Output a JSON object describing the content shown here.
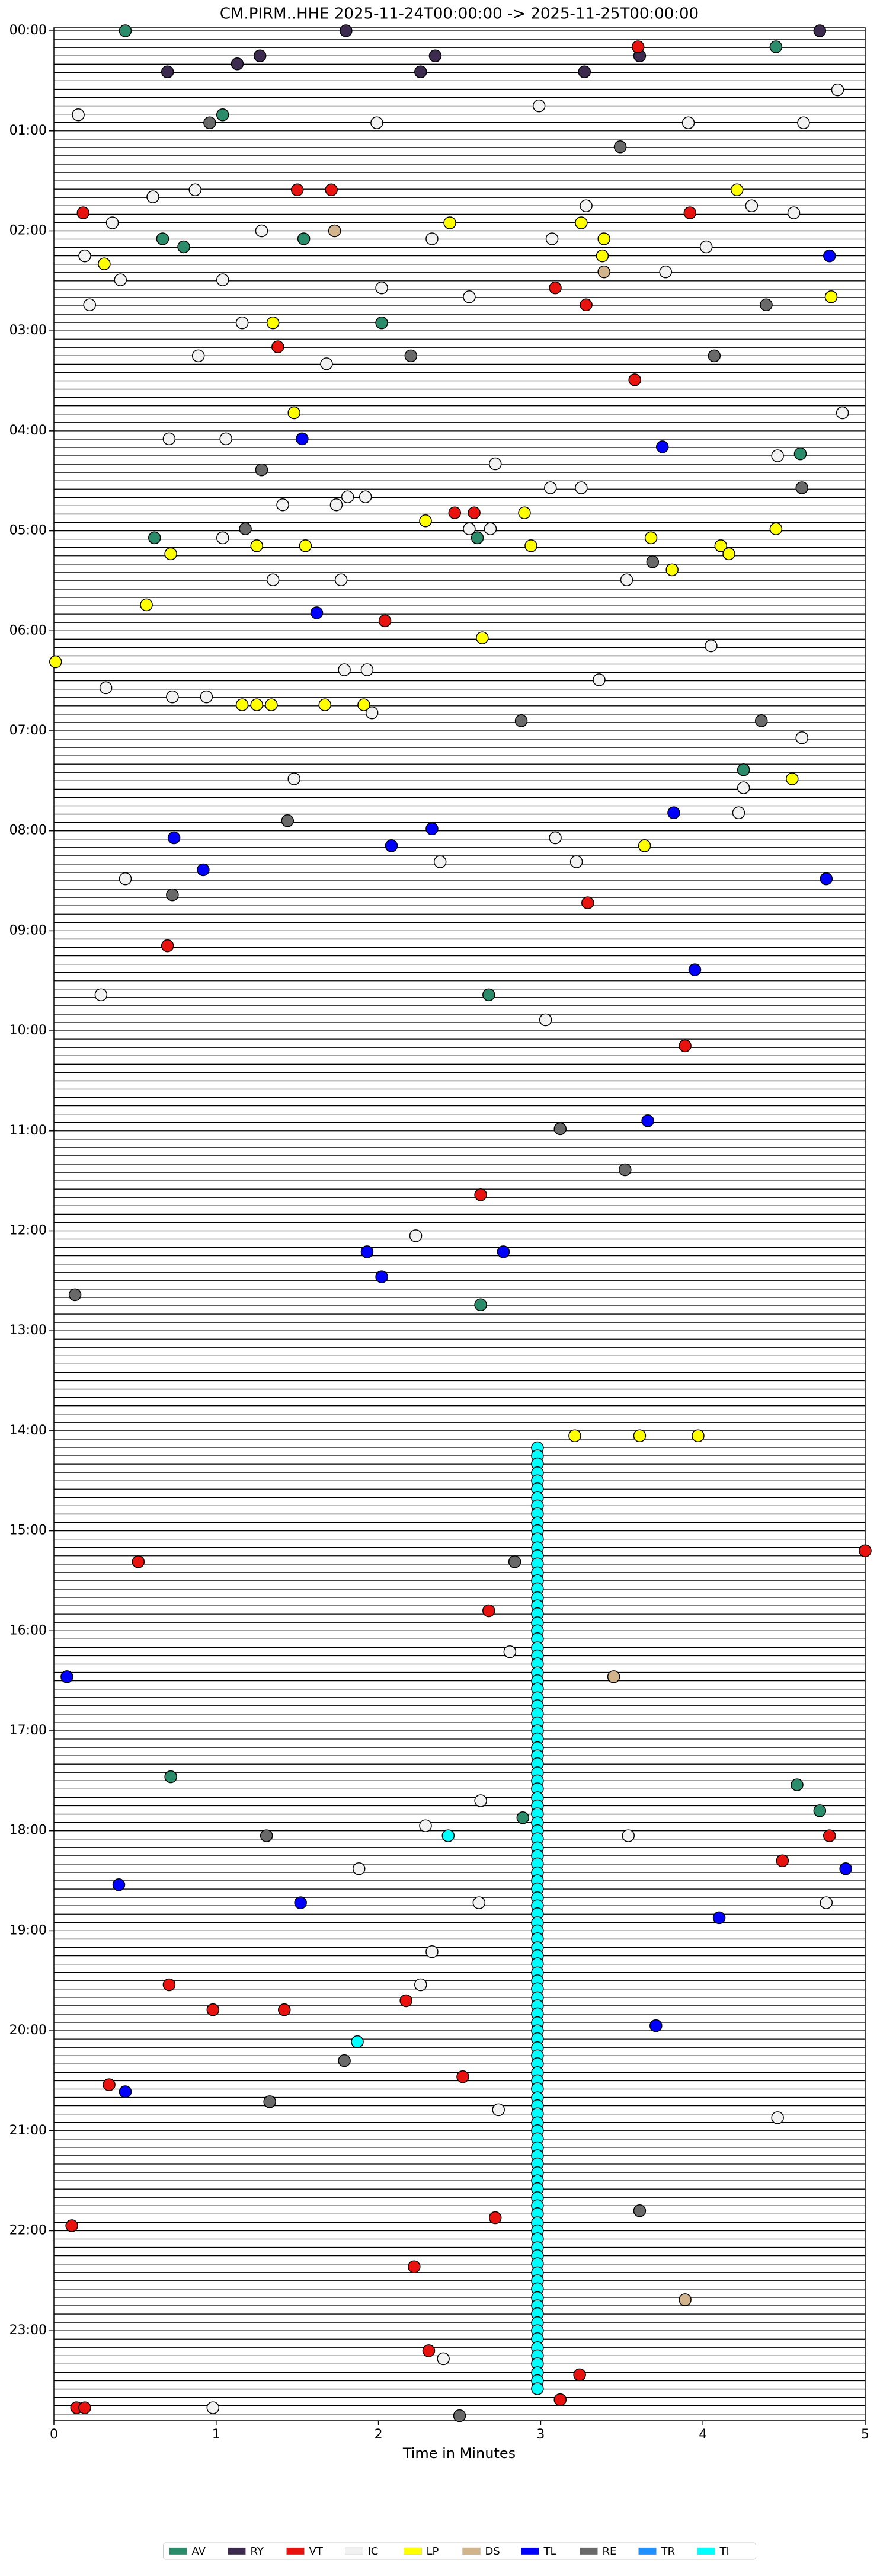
{
  "chart_data": {
    "type": "scatter",
    "title": "CM.PIRM..HHE  2025-11-24T00:00:00 -> 2025-11-25T00:00:00",
    "xlabel": "Time in Minutes",
    "xlim": [
      0,
      5
    ],
    "xticks": [
      0,
      1,
      2,
      3,
      4,
      5
    ],
    "ylim": [
      -0.03,
      23.9
    ],
    "invert_y": true,
    "yticks": [
      {
        "value": 0,
        "label": "00:00"
      },
      {
        "value": 1,
        "label": "01:00"
      },
      {
        "value": 2,
        "label": "02:00"
      },
      {
        "value": 3,
        "label": "03:00"
      },
      {
        "value": 4,
        "label": "04:00"
      },
      {
        "value": 5,
        "label": "05:00"
      },
      {
        "value": 6,
        "label": "06:00"
      },
      {
        "value": 7,
        "label": "07:00"
      },
      {
        "value": 8,
        "label": "08:00"
      },
      {
        "value": 9,
        "label": "09:00"
      },
      {
        "value": 10,
        "label": "10:00"
      },
      {
        "value": 11,
        "label": "11:00"
      },
      {
        "value": 12,
        "label": "12:00"
      },
      {
        "value": 13,
        "label": "13:00"
      },
      {
        "value": 14,
        "label": "14:00"
      },
      {
        "value": 15,
        "label": "15:00"
      },
      {
        "value": 16,
        "label": "16:00"
      },
      {
        "value": 17,
        "label": "17:00"
      },
      {
        "value": 18,
        "label": "18:00"
      },
      {
        "value": 19,
        "label": "19:00"
      },
      {
        "value": 20,
        "label": "20:00"
      },
      {
        "value": 21,
        "label": "21:00"
      },
      {
        "value": 22,
        "label": "22:00"
      },
      {
        "value": 23,
        "label": "23:00"
      }
    ],
    "legend": "lower center",
    "series": [
      {
        "name": "AV",
        "color": "#2a8c6a",
        "x": [
          0.44,
          4.45,
          1.04,
          1.54,
          0.67,
          0.8,
          2.02,
          4.6,
          2.61,
          0.62,
          4.25,
          2.68,
          2.63,
          0.72,
          4.58,
          4.72,
          2.89
        ],
        "values": [
          0.0,
          0.16,
          0.84,
          2.08,
          2.08,
          2.16,
          2.92,
          4.23,
          5.07,
          5.07,
          7.39,
          9.64,
          12.74,
          17.46,
          17.54,
          17.8,
          17.87
        ]
      },
      {
        "name": "RY",
        "color": "#3d2b4f",
        "x": [
          4.72,
          1.8,
          1.27,
          2.35,
          3.61,
          1.13,
          0.7,
          2.26,
          3.27
        ],
        "values": [
          0,
          0,
          0.25,
          0.25,
          0.25,
          0.33,
          0.41,
          0.41,
          0.41
        ]
      },
      {
        "name": "VT",
        "color": "#e8120f",
        "x": [
          3.6,
          1.5,
          1.71,
          0.18,
          3.92,
          3.09,
          3.28,
          1.38,
          3.58,
          2.47,
          2.59,
          2.04,
          3.29,
          0.7,
          3.89,
          2.63,
          0.52,
          2.68,
          4.78,
          4.49,
          0.71,
          0.98,
          1.42,
          2.17,
          0.34,
          2.52,
          0.11,
          2.72,
          2.22,
          2.31,
          3.24,
          3.12,
          0.14,
          0.19,
          5.0
        ],
        "values": [
          0.16,
          1.59,
          1.59,
          1.82,
          1.82,
          2.57,
          2.74,
          3.16,
          3.49,
          4.82,
          4.82,
          5.9,
          8.72,
          9.15,
          10.15,
          11.64,
          15.31,
          15.8,
          18.05,
          18.3,
          19.54,
          19.79,
          19.79,
          19.7,
          20.54,
          20.46,
          21.95,
          21.87,
          22.36,
          23.2,
          23.44,
          23.69,
          23.77,
          23.77,
          15.2
        ]
      },
      {
        "name": "IC",
        "color": "#f2f2f2",
        "x": [
          0.15,
          1.99,
          3.91,
          4.62,
          2.99,
          4.83,
          0.87,
          0.61,
          3.28,
          4.3,
          4.56,
          0.36,
          1.28,
          2.33,
          3.07,
          4.02,
          0.19,
          0.41,
          1.04,
          3.77,
          2.02,
          2.56,
          0.22,
          1.16,
          0.89,
          1.68,
          4.86,
          0.71,
          1.06,
          4.46,
          2.72,
          3.06,
          3.25,
          1.81,
          1.92,
          1.74,
          1.41,
          1.04,
          2.56,
          2.69,
          1.35,
          1.77,
          3.53,
          4.05,
          1.79,
          1.93,
          0.32,
          3.36,
          0.73,
          0.94,
          1.96,
          4.61,
          4.25,
          1.48,
          4.22,
          3.09,
          2.38,
          3.22,
          0.44,
          0.29,
          3.03,
          2.23,
          2.29,
          3.54,
          2.63,
          1.88,
          2.62,
          4.76,
          2.33,
          2.26,
          2.74,
          4.46,
          2.81,
          2.4,
          0.98
        ],
        "values": [
          0.84,
          0.92,
          0.92,
          0.92,
          0.75,
          0.59,
          1.59,
          1.66,
          1.75,
          1.75,
          1.82,
          1.92,
          2.0,
          2.08,
          2.08,
          2.16,
          2.25,
          2.49,
          2.49,
          2.41,
          2.57,
          2.66,
          2.74,
          2.92,
          3.25,
          3.33,
          3.82,
          4.08,
          4.08,
          4.25,
          4.33,
          4.57,
          4.57,
          4.66,
          4.66,
          4.74,
          4.74,
          5.07,
          4.98,
          4.98,
          5.49,
          5.49,
          5.49,
          6.15,
          6.39,
          6.39,
          6.57,
          6.49,
          6.66,
          6.66,
          6.82,
          7.07,
          7.57,
          7.48,
          7.82,
          8.07,
          8.31,
          8.31,
          8.48,
          9.64,
          9.89,
          12.05,
          17.95,
          18.05,
          17.7,
          18.38,
          18.72,
          18.72,
          19.21,
          19.54,
          20.79,
          20.87,
          16.21,
          23.28,
          23.77
        ]
      },
      {
        "name": "LP",
        "color": "#ffff00",
        "x": [
          4.21,
          2.44,
          3.25,
          3.39,
          0.31,
          3.38,
          4.79,
          1.35,
          1.48,
          2.29,
          2.9,
          3.68,
          4.45,
          1.25,
          1.55,
          2.94,
          4.11,
          4.16,
          0.72,
          3.81,
          0.57,
          2.64,
          0.01,
          1.16,
          1.25,
          1.34,
          1.67,
          1.91,
          4.55,
          3.64,
          3.21,
          3.61,
          3.97
        ],
        "values": [
          1.59,
          1.92,
          1.92,
          2.08,
          2.33,
          2.25,
          2.66,
          2.92,
          3.82,
          4.9,
          4.82,
          5.07,
          4.98,
          5.15,
          5.15,
          5.15,
          5.15,
          5.23,
          5.23,
          5.39,
          5.74,
          6.07,
          6.31,
          6.74,
          6.74,
          6.74,
          6.74,
          6.74,
          7.48,
          8.15,
          14.05,
          14.05,
          14.05
        ]
      },
      {
        "name": "DS",
        "color": "#d2b48c",
        "x": [
          1.73,
          3.39,
          3.45,
          3.89
        ],
        "values": [
          2.0,
          2.41,
          16.46,
          22.69
        ]
      },
      {
        "name": "TL",
        "color": "#0000ff",
        "x": [
          4.78,
          1.53,
          3.75,
          1.62,
          3.82,
          0.74,
          2.33,
          2.08,
          0.92,
          4.76,
          3.95,
          3.66,
          1.93,
          2.77,
          2.02,
          0.08,
          4.88,
          0.4,
          1.52,
          4.1,
          3.71,
          0.44
        ],
        "values": [
          2.25,
          4.08,
          4.16,
          5.82,
          7.82,
          8.07,
          7.98,
          8.15,
          8.39,
          8.48,
          9.39,
          10.9,
          12.21,
          12.21,
          12.46,
          16.46,
          18.38,
          18.54,
          18.72,
          18.87,
          19.95,
          20.61
        ]
      },
      {
        "name": "RE",
        "color": "#696969",
        "x": [
          4.07,
          2.2,
          1.28,
          4.61,
          1.18,
          3.69,
          2.88,
          4.36,
          1.44,
          0.73,
          3.12,
          3.52,
          0.13,
          4.39,
          0.96,
          3.49,
          2.84,
          1.31,
          1.79,
          1.33,
          3.61,
          2.5
        ],
        "values": [
          3.25,
          3.25,
          4.39,
          4.57,
          4.98,
          5.31,
          6.9,
          6.9,
          7.9,
          8.64,
          10.98,
          11.39,
          12.64,
          2.74,
          0.92,
          1.16,
          15.31,
          18.05,
          20.3,
          20.71,
          21.8,
          23.85
        ]
      },
      {
        "name": "TR",
        "color": "#1e90ff",
        "x": [],
        "values": []
      },
      {
        "name": "TI",
        "color": "#00ffff",
        "x": [
          2.98,
          2.98,
          2.98,
          2.98,
          2.98,
          2.98,
          2.98,
          2.98,
          2.98,
          2.98,
          2.98,
          2.98,
          2.98,
          2.98,
          2.98,
          2.98,
          2.98,
          2.98,
          2.98,
          2.98,
          2.98,
          2.98,
          2.98,
          2.98,
          2.98,
          2.98,
          2.98,
          2.98,
          2.98,
          2.98,
          2.98,
          2.98,
          2.98,
          2.98,
          2.98,
          2.98,
          2.98,
          2.98,
          2.98,
          2.98,
          2.98,
          2.98,
          2.98,
          2.98,
          2.98,
          2.98,
          2.98,
          2.98,
          2.98,
          2.98,
          2.98,
          2.98,
          2.98,
          2.98,
          2.98,
          2.98,
          2.98,
          2.98,
          2.98,
          2.98,
          2.98,
          2.98,
          2.98,
          2.98,
          2.98,
          2.98,
          2.98,
          2.98,
          2.98,
          2.98,
          2.98,
          2.98,
          2.98,
          2.98,
          2.98,
          2.98,
          2.98,
          2.98,
          2.98,
          2.98,
          2.98,
          2.98,
          2.98,
          2.98,
          2.98,
          2.98,
          2.98,
          2.98,
          2.98,
          2.98,
          2.98,
          2.98,
          2.98,
          2.98,
          2.98,
          2.98,
          2.98,
          2.98,
          2.98,
          2.98,
          2.98,
          2.98,
          2.98,
          2.98,
          2.98,
          2.98,
          2.98,
          2.98,
          2.98,
          2.98,
          2.98,
          2.98,
          2.98,
          2.98,
          2.43,
          1.87
        ],
        "values": [
          14.17,
          14.25,
          14.33,
          14.42,
          14.5,
          14.58,
          14.67,
          14.75,
          14.83,
          14.92,
          15.0,
          15.08,
          15.17,
          15.25,
          15.33,
          15.42,
          15.5,
          15.58,
          15.67,
          15.75,
          15.83,
          15.92,
          16.0,
          16.08,
          16.17,
          16.25,
          16.33,
          16.42,
          16.5,
          16.58,
          16.67,
          16.75,
          16.83,
          16.92,
          17.0,
          17.08,
          17.17,
          17.25,
          17.33,
          17.42,
          17.5,
          17.58,
          17.67,
          17.75,
          17.83,
          17.92,
          18.0,
          18.08,
          18.17,
          18.25,
          18.33,
          18.42,
          18.5,
          18.58,
          18.67,
          18.75,
          18.83,
          18.92,
          19.0,
          19.08,
          19.17,
          19.25,
          19.33,
          19.42,
          19.5,
          19.58,
          19.67,
          19.75,
          19.83,
          19.92,
          20.0,
          20.08,
          20.17,
          20.25,
          20.33,
          20.42,
          20.5,
          20.58,
          20.67,
          20.75,
          20.83,
          20.92,
          21.0,
          21.08,
          21.17,
          21.25,
          21.33,
          21.42,
          21.5,
          21.58,
          21.67,
          21.75,
          21.83,
          21.92,
          22.0,
          22.08,
          22.17,
          22.25,
          22.33,
          22.42,
          22.5,
          22.58,
          22.67,
          22.75,
          22.83,
          22.92,
          23.0,
          23.08,
          23.17,
          23.25,
          23.33,
          23.42,
          23.5,
          23.58,
          18.05,
          20.11
        ]
      }
    ]
  }
}
